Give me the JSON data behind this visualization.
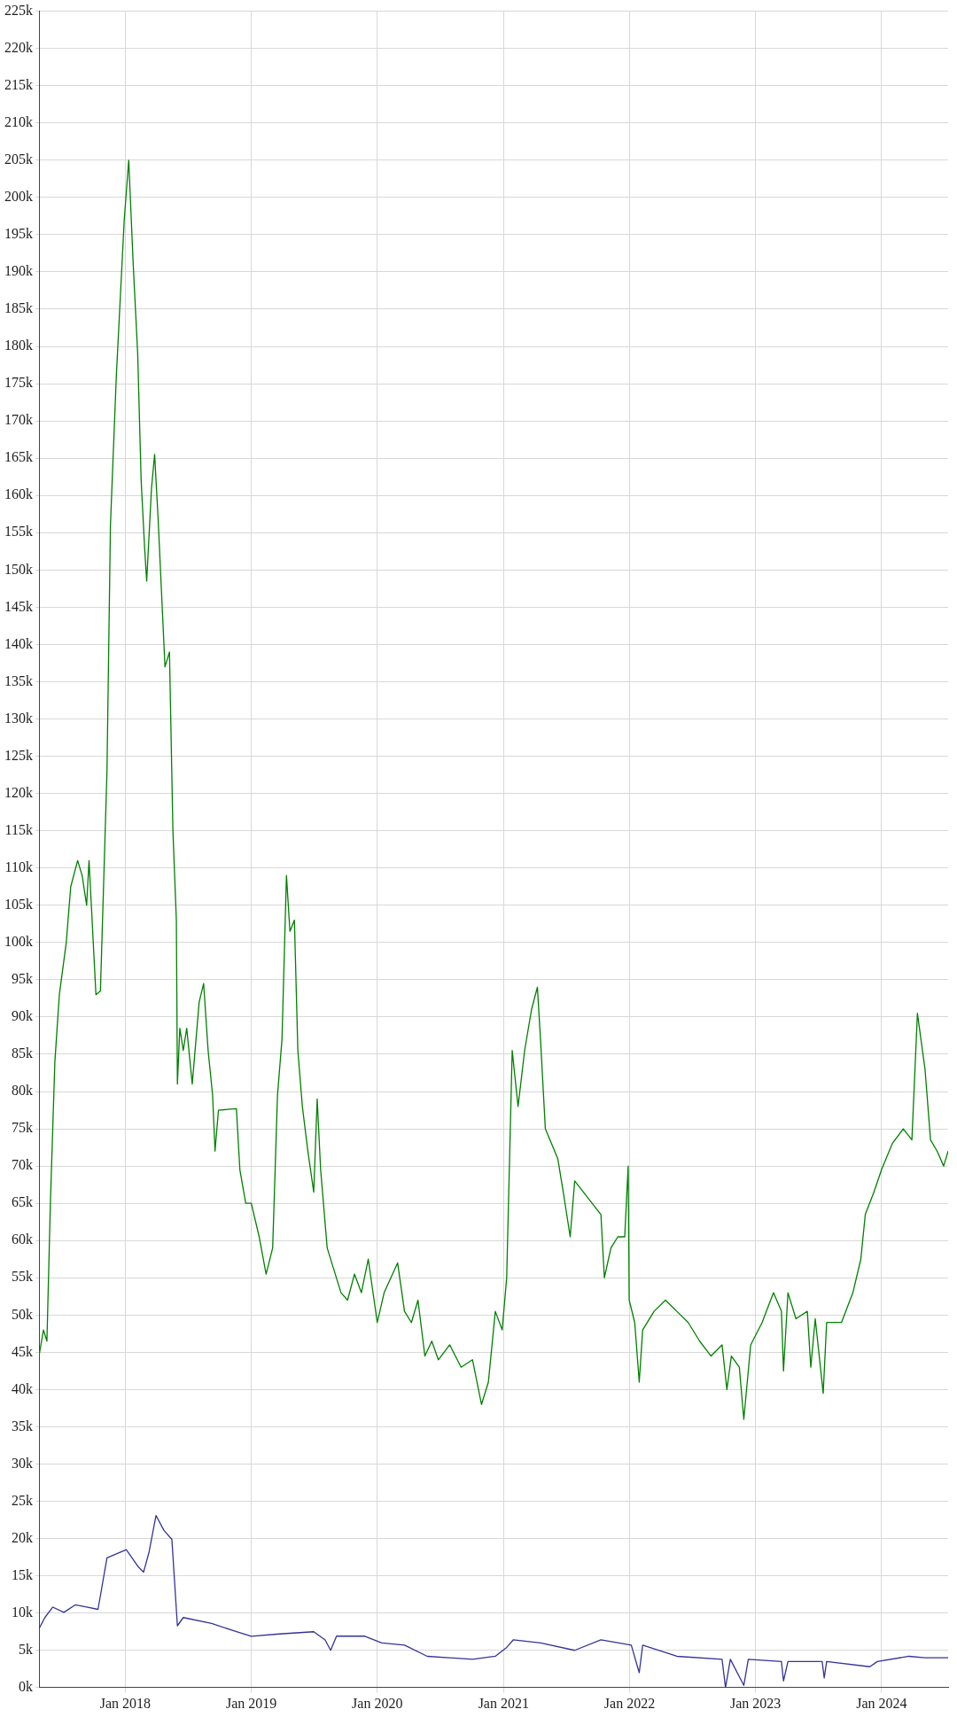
{
  "chart_data": {
    "type": "line",
    "grid": true,
    "legend": false,
    "marker": "none",
    "line_style": "solid",
    "xlim": [
      "2017-04-26",
      "2024-07-12"
    ],
    "xticks": [
      {
        "value": "2018-01-01",
        "label": "Jan 2018"
      },
      {
        "value": "2019-01-01",
        "label": "Jan 2019"
      },
      {
        "value": "2020-01-01",
        "label": "Jan 2020"
      },
      {
        "value": "2021-01-01",
        "label": "Jan 2021"
      },
      {
        "value": "2022-01-01",
        "label": "Jan 2022"
      },
      {
        "value": "2023-01-01",
        "label": "Jan 2023"
      },
      {
        "value": "2024-01-01",
        "label": "Jan 2024"
      }
    ],
    "ylim": [
      0,
      225000
    ],
    "yticks": [
      {
        "value": 0,
        "label": "0k"
      },
      {
        "value": 5000,
        "label": "5k"
      },
      {
        "value": 10000,
        "label": "10k"
      },
      {
        "value": 15000,
        "label": "15k"
      },
      {
        "value": 20000,
        "label": "20k"
      },
      {
        "value": 25000,
        "label": "25k"
      },
      {
        "value": 30000,
        "label": "30k"
      },
      {
        "value": 35000,
        "label": "35k"
      },
      {
        "value": 40000,
        "label": "40k"
      },
      {
        "value": 45000,
        "label": "45k"
      },
      {
        "value": 50000,
        "label": "50k"
      },
      {
        "value": 55000,
        "label": "55k"
      },
      {
        "value": 60000,
        "label": "60k"
      },
      {
        "value": 65000,
        "label": "65k"
      },
      {
        "value": 70000,
        "label": "70k"
      },
      {
        "value": 75000,
        "label": "75k"
      },
      {
        "value": 80000,
        "label": "80k"
      },
      {
        "value": 85000,
        "label": "85k"
      },
      {
        "value": 90000,
        "label": "90k"
      },
      {
        "value": 95000,
        "label": "95k"
      },
      {
        "value": 100000,
        "label": "100k"
      },
      {
        "value": 105000,
        "label": "105k"
      },
      {
        "value": 110000,
        "label": "110k"
      },
      {
        "value": 115000,
        "label": "115k"
      },
      {
        "value": 120000,
        "label": "120k"
      },
      {
        "value": 125000,
        "label": "125k"
      },
      {
        "value": 130000,
        "label": "130k"
      },
      {
        "value": 135000,
        "label": "135k"
      },
      {
        "value": 140000,
        "label": "140k"
      },
      {
        "value": 145000,
        "label": "145k"
      },
      {
        "value": 150000,
        "label": "150k"
      },
      {
        "value": 155000,
        "label": "155k"
      },
      {
        "value": 160000,
        "label": "160k"
      },
      {
        "value": 165000,
        "label": "165k"
      },
      {
        "value": 170000,
        "label": "170k"
      },
      {
        "value": 175000,
        "label": "175k"
      },
      {
        "value": 180000,
        "label": "180k"
      },
      {
        "value": 185000,
        "label": "185k"
      },
      {
        "value": 190000,
        "label": "190k"
      },
      {
        "value": 195000,
        "label": "195k"
      },
      {
        "value": 200000,
        "label": "200k"
      },
      {
        "value": 205000,
        "label": "205k"
      },
      {
        "value": 210000,
        "label": "210k"
      },
      {
        "value": 215000,
        "label": "215k"
      },
      {
        "value": 220000,
        "label": "220k"
      },
      {
        "value": 225000,
        "label": "225k"
      }
    ],
    "series": [
      {
        "color": "#008000",
        "x": [
          "2017-04-26",
          "2017-05-09",
          "2017-05-19",
          "2017-05-29",
          "2017-06-11",
          "2017-06-24",
          "2017-07-14",
          "2017-07-27",
          "2017-08-16",
          "2017-08-29",
          "2017-09-11",
          "2017-09-18",
          "2017-10-08",
          "2017-10-21",
          "2017-11-09",
          "2017-11-19",
          "2017-12-06",
          "2017-12-29",
          "2018-01-11",
          "2018-01-24",
          "2018-02-06",
          "2018-02-16",
          "2018-02-26",
          "2018-03-04",
          "2018-03-18",
          "2018-03-27",
          "2018-04-06",
          "2018-04-16",
          "2018-04-26",
          "2018-05-09",
          "2018-05-19",
          "2018-05-29",
          "2018-06-01",
          "2018-06-08",
          "2018-06-18",
          "2018-06-28",
          "2018-07-14",
          "2018-08-03",
          "2018-08-16",
          "2018-08-29",
          "2018-09-11",
          "2018-09-18",
          "2018-09-28",
          "2018-11-19",
          "2018-11-29",
          "2018-12-16",
          "2019-01-01",
          "2019-01-24",
          "2019-02-13",
          "2019-03-04",
          "2019-03-18",
          "2019-03-31",
          "2019-04-13",
          "2019-04-23",
          "2019-05-06",
          "2019-05-16",
          "2019-05-29",
          "2019-06-14",
          "2019-07-01",
          "2019-07-11",
          "2019-07-21",
          "2019-08-09",
          "2019-08-29",
          "2019-09-18",
          "2019-10-07",
          "2019-10-27",
          "2019-11-16",
          "2019-12-06",
          "2020-01-01",
          "2020-01-21",
          "2020-02-29",
          "2020-03-20",
          "2020-04-09",
          "2020-04-28",
          "2020-05-18",
          "2020-06-07",
          "2020-06-26",
          "2020-07-29",
          "2020-08-31",
          "2020-10-03",
          "2020-10-29",
          "2020-11-18",
          "2020-12-08",
          "2020-12-28",
          "2021-01-10",
          "2021-01-26",
          "2021-02-12",
          "2021-03-03",
          "2021-03-23",
          "2021-04-09",
          "2021-04-18",
          "2021-05-02",
          "2021-06-07",
          "2021-06-23",
          "2021-07-13",
          "2021-07-26",
          "2021-10-10",
          "2021-10-20",
          "2021-11-08",
          "2021-11-28",
          "2021-12-18",
          "2021-12-28",
          "2021-12-31",
          "2022-01-16",
          "2022-01-29",
          "2022-02-08",
          "2022-03-13",
          "2022-04-15",
          "2022-05-18",
          "2022-06-20",
          "2022-07-23",
          "2022-08-25",
          "2022-09-26",
          "2022-10-10",
          "2022-10-23",
          "2022-11-15",
          "2022-11-28",
          "2022-12-18",
          "2023-01-20",
          "2023-02-22",
          "2023-03-17",
          "2023-03-23",
          "2023-04-05",
          "2023-04-28",
          "2023-05-31",
          "2023-06-10",
          "2023-06-23",
          "2023-07-16",
          "2023-07-26",
          "2023-09-07",
          "2023-10-10",
          "2023-11-02",
          "2023-11-15",
          "2023-12-10",
          "2024-01-01",
          "2024-02-01",
          "2024-03-04",
          "2024-03-29",
          "2024-04-14",
          "2024-05-06",
          "2024-05-22",
          "2024-06-10",
          "2024-06-29",
          "2024-07-12"
        ],
        "values": [
          44500,
          48000,
          46500,
          65000,
          84000,
          93000,
          100000,
          107500,
          111000,
          109000,
          105000,
          111000,
          93000,
          93500,
          123000,
          156000,
          176000,
          197000,
          205000,
          191000,
          179000,
          162000,
          153000,
          148500,
          161000,
          165500,
          157000,
          147000,
          137000,
          139000,
          115000,
          103000,
          81000,
          88500,
          85500,
          88500,
          81000,
          92000,
          94500,
          85500,
          79500,
          72000,
          77500,
          77700,
          69500,
          65000,
          65000,
          60500,
          55500,
          59000,
          79500,
          87000,
          109000,
          101500,
          103000,
          85500,
          78000,
          72000,
          66500,
          79000,
          69500,
          59000,
          56000,
          53000,
          52000,
          55500,
          53000,
          57500,
          49000,
          53000,
          57000,
          50500,
          49000,
          52000,
          44500,
          46500,
          44000,
          46000,
          43000,
          44000,
          38000,
          41000,
          50500,
          48000,
          55000,
          85500,
          78000,
          85500,
          91000,
          94000,
          87000,
          75000,
          71000,
          66500,
          60500,
          68000,
          63500,
          55000,
          59000,
          60500,
          60500,
          70000,
          52000,
          49000,
          41000,
          48000,
          50500,
          52000,
          50500,
          49000,
          46500,
          44500,
          46000,
          40000,
          44500,
          43000,
          36000,
          46000,
          49000,
          53000,
          50500,
          42500,
          53000,
          49500,
          50500,
          43000,
          49500,
          39500,
          49000,
          49000,
          53000,
          57500,
          63500,
          66500,
          69500,
          73000,
          75000,
          73500,
          90500,
          83000,
          73500,
          72000,
          70000,
          72000
        ]
      },
      {
        "color": "#333399",
        "x": [
          "2017-04-26",
          "2017-05-13",
          "2017-06-05",
          "2017-07-07",
          "2017-08-09",
          "2017-09-11",
          "2017-10-14",
          "2017-11-09",
          "2018-01-04",
          "2018-02-06",
          "2018-02-23",
          "2018-03-11",
          "2018-03-31",
          "2018-04-23",
          "2018-05-16",
          "2018-06-01",
          "2018-06-18",
          "2018-09-08",
          "2018-11-13",
          "2019-01-01",
          "2019-03-24",
          "2019-07-01",
          "2019-08-03",
          "2019-08-19",
          "2019-09-05",
          "2019-11-26",
          "2020-01-14",
          "2020-03-20",
          "2020-05-25",
          "2020-10-03",
          "2020-12-08",
          "2021-01-10",
          "2021-01-29",
          "2021-04-18",
          "2021-07-26",
          "2021-10-10",
          "2022-01-06",
          "2022-01-29",
          "2022-02-08",
          "2022-05-18",
          "2022-09-26",
          "2022-10-06",
          "2022-10-20",
          "2022-11-28",
          "2022-12-11",
          "2023-03-17",
          "2023-03-23",
          "2023-04-05",
          "2023-07-13",
          "2023-07-19",
          "2023-07-26",
          "2023-11-28",
          "2023-12-20",
          "2024-03-20",
          "2024-05-06",
          "2024-07-12"
        ],
        "values": [
          7900,
          9400,
          10800,
          10100,
          11100,
          10800,
          10500,
          17400,
          18500,
          16300,
          15500,
          18200,
          23100,
          21100,
          19900,
          8300,
          9400,
          8600,
          7600,
          6900,
          7200,
          7500,
          6400,
          5000,
          6900,
          6900,
          6000,
          5700,
          4200,
          3800,
          4200,
          5400,
          6400,
          6000,
          5000,
          6400,
          5700,
          2000,
          5700,
          4200,
          3800,
          0,
          3800,
          300,
          3800,
          3500,
          900,
          3500,
          3500,
          1300,
          3500,
          2800,
          3500,
          4200,
          4000,
          4000
        ]
      }
    ]
  }
}
